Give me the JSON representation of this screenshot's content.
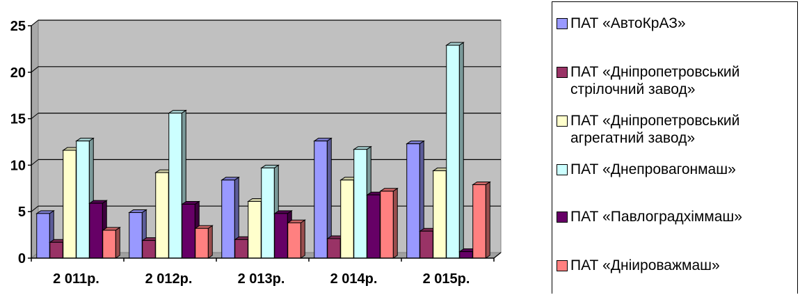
{
  "chart_data": {
    "type": "bar",
    "title": "",
    "xlabel": "",
    "ylabel": "",
    "categories": [
      "2 011р.",
      "2 012р.",
      "2 013р.",
      "2 014р.",
      "2 015р."
    ],
    "ylim": [
      0,
      25
    ],
    "yticks": [
      "0",
      "5",
      "10",
      "15",
      "20",
      "25"
    ],
    "grid": true,
    "legend_position": "right",
    "series": [
      {
        "name": "ПАТ «АвтоКрАЗ»",
        "color": "#9999FF",
        "values": [
          4.8,
          4.9,
          8.4,
          12.6,
          12.3
        ]
      },
      {
        "name": "ПАТ «Дніпропетровський стрілочний завод»",
        "color": "#993366",
        "values": [
          1.7,
          1.9,
          2.0,
          2.1,
          2.9
        ]
      },
      {
        "name": "ПАТ «Дніпропетровський агрегатний завод»",
        "color": "#FFFFCC",
        "values": [
          11.6,
          9.2,
          6.1,
          8.4,
          9.4
        ]
      },
      {
        "name": "ПАТ «Днепровагонмаш»",
        "color": "#CCFFFF",
        "values": [
          12.6,
          15.6,
          9.7,
          11.7,
          22.9
        ]
      },
      {
        "name": "ПАТ «Павлоградхіммаш»",
        "color": "#660066",
        "values": [
          5.9,
          5.8,
          4.8,
          6.8,
          0.7
        ]
      },
      {
        "name": "ПАТ «Дніироважмаш»",
        "color": "#FF8080",
        "values": [
          3.0,
          3.2,
          3.8,
          7.2,
          7.9
        ]
      }
    ]
  }
}
